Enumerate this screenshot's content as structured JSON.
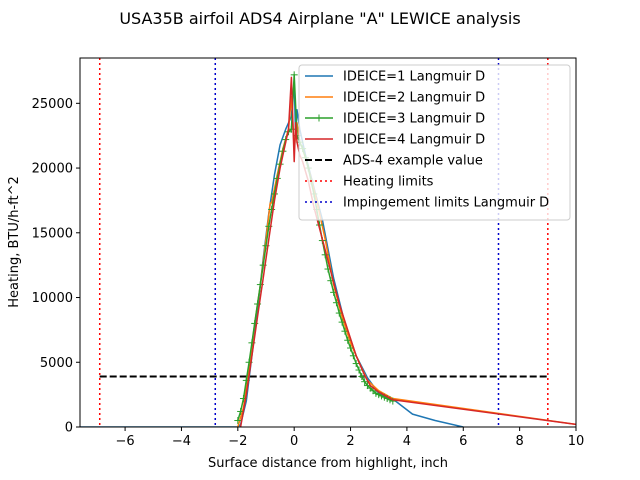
{
  "chart_data": {
    "type": "line",
    "title": "USA35B airfoil ADS4 Airplane \"A\" LEWICE analysis",
    "xlabel": "Surface distance from highlight, inch",
    "ylabel": "Heating, BTU/h-ft^2",
    "xlim": [
      -7.6,
      10
    ],
    "ylim": [
      0,
      28500
    ],
    "xticks": [
      -6,
      -4,
      -2,
      0,
      2,
      4,
      6,
      8,
      10
    ],
    "yticks": [
      0,
      5000,
      10000,
      15000,
      20000,
      25000
    ],
    "grid": false,
    "legend_position": "top-right",
    "series": [
      {
        "name": "IDEICE=1 Langmuir D",
        "color": "#1f77b4",
        "style": "solid",
        "x": [
          -7.6,
          -2.0,
          -1.9,
          -1.7,
          -1.5,
          -1.3,
          -1.1,
          -0.9,
          -0.7,
          -0.5,
          -0.3,
          -0.1,
          0.0,
          0.05,
          0.1,
          0.2,
          0.4,
          0.7,
          1.0,
          1.4,
          1.8,
          2.2,
          2.6,
          3.0,
          3.6,
          4.2,
          5.0,
          6.0
        ],
        "y": [
          0,
          0,
          200,
          2000,
          5500,
          9000,
          13000,
          16500,
          19500,
          21800,
          23000,
          24000,
          26700,
          22500,
          24500,
          23000,
          21000,
          18500,
          16000,
          11500,
          8000,
          5500,
          3800,
          2600,
          2000,
          1000,
          500,
          0
        ]
      },
      {
        "name": "IDEICE=2 Langmuir D",
        "color": "#ff7f0e",
        "style": "solid",
        "x": [
          -2.0,
          -1.8,
          -1.6,
          -1.4,
          -1.2,
          -1.0,
          -0.85,
          -0.8,
          -0.6,
          -0.4,
          -0.2,
          -0.1,
          0.0,
          0.1,
          0.2,
          0.3,
          0.5,
          0.8,
          1.1,
          1.4,
          1.7,
          2.0,
          2.3,
          2.6,
          3.0,
          3.5,
          10.0
        ],
        "y": [
          0,
          1500,
          4500,
          8000,
          11000,
          14500,
          17300,
          17300,
          19500,
          21500,
          23000,
          25500,
          21500,
          23500,
          22000,
          21500,
          20000,
          17500,
          14500,
          11000,
          8500,
          6500,
          5000,
          3600,
          2800,
          2200,
          200
        ]
      },
      {
        "name": "IDEICE=3 Langmuir D",
        "color": "#2ca02c",
        "style": "solid",
        "marker": "+",
        "x": [
          -2.0,
          -1.9,
          -1.8,
          -1.7,
          -1.6,
          -1.5,
          -1.4,
          -1.3,
          -1.2,
          -1.1,
          -1.0,
          -0.9,
          -0.8,
          -0.7,
          -0.6,
          -0.5,
          -0.4,
          -0.3,
          -0.2,
          -0.1,
          0.0,
          0.1,
          0.2,
          0.3,
          0.4,
          0.5,
          0.6,
          0.7,
          0.8,
          0.9,
          1.0,
          1.1,
          1.2,
          1.3,
          1.4,
          1.5,
          1.6,
          1.7,
          1.8,
          1.9,
          2.0,
          2.1,
          2.2,
          2.3,
          2.4,
          2.5,
          2.6,
          2.7,
          2.8,
          2.9,
          3.0,
          3.1,
          3.2,
          3.3,
          3.4,
          3.5
        ],
        "y": [
          500,
          1200,
          2200,
          3600,
          5000,
          6500,
          8000,
          9500,
          11000,
          12500,
          14000,
          15500,
          16800,
          18000,
          19200,
          20300,
          21300,
          22200,
          22800,
          23000,
          27200,
          22500,
          22000,
          21500,
          20800,
          20000,
          19000,
          18000,
          16800,
          15600,
          14400,
          13300,
          12200,
          11300,
          10400,
          9600,
          8800,
          8100,
          7400,
          6700,
          6100,
          5500,
          4900,
          4400,
          3900,
          3500,
          3200,
          3000,
          2800,
          2600,
          2500,
          2400,
          2300,
          2200,
          2100,
          2000
        ]
      },
      {
        "name": "IDEICE=4 Langmuir D",
        "color": "#d62728",
        "style": "solid",
        "x": [
          -1.9,
          -1.7,
          -1.5,
          -1.3,
          -1.1,
          -0.9,
          -0.7,
          -0.5,
          -0.3,
          -0.2,
          -0.1,
          0.0,
          0.05,
          0.1,
          0.2,
          0.3,
          0.5,
          0.7,
          1.0,
          1.3,
          1.6,
          1.9,
          2.2,
          2.5,
          2.7,
          3.0,
          3.5,
          10.0
        ],
        "y": [
          0,
          2500,
          5500,
          8500,
          11500,
          14500,
          17500,
          20000,
          22000,
          23000,
          27000,
          20500,
          23500,
          22000,
          21000,
          20500,
          19000,
          17000,
          14500,
          12000,
          9500,
          7500,
          5500,
          4000,
          3200,
          2700,
          2100,
          200
        ]
      },
      {
        "name": "ADS-4 example value",
        "color": "#000000",
        "style": "dashed",
        "x": [
          -6.9,
          9.0
        ],
        "y": [
          3900,
          3900
        ]
      },
      {
        "name": "Heating limits",
        "color": "#ff0000",
        "style": "dotted",
        "vertical_lines": [
          -6.9,
          9.0
        ]
      },
      {
        "name": "Impingement limits Langmuir D",
        "color": "#0000cc",
        "style": "dotted",
        "vertical_lines": [
          -2.8,
          7.25
        ]
      }
    ]
  }
}
